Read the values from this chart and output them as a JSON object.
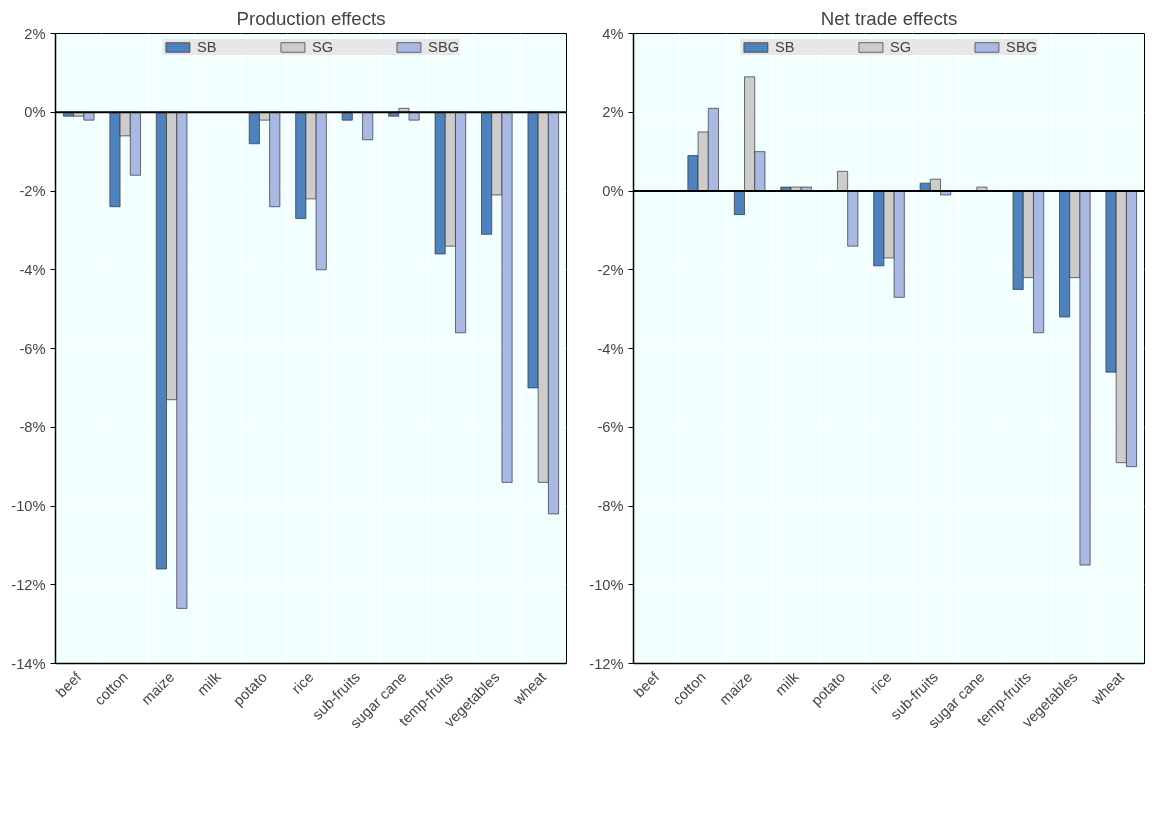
{
  "chart_data": [
    {
      "type": "bar",
      "title": "Production effects",
      "categories": [
        "beef",
        "cotton",
        "maize",
        "milk",
        "potato",
        "rice",
        "sub-fruits",
        "sugar cane",
        "temp-fruits",
        "vegetables",
        "wheat"
      ],
      "series": [
        {
          "name": "SB",
          "color": "#4f81bd",
          "values": [
            -0.1,
            -2.4,
            -11.6,
            null,
            -0.8,
            -2.7,
            -0.2,
            -0.1,
            -3.6,
            -3.1,
            -7.0
          ]
        },
        {
          "name": "SG",
          "color": "#cccccc",
          "values": [
            -0.1,
            -0.6,
            -7.3,
            null,
            -0.2,
            -2.2,
            null,
            0.1,
            -3.4,
            -2.1,
            -9.4
          ]
        },
        {
          "name": "SBG",
          "color": "#a9b9e4",
          "values": [
            -0.2,
            -1.6,
            -12.6,
            null,
            -2.4,
            -4.0,
            -0.7,
            -0.2,
            -5.6,
            -9.4,
            -10.2
          ]
        }
      ],
      "ylim": [
        -14,
        2
      ],
      "yticks": [
        {
          "value": -14,
          "label": "-14%"
        },
        {
          "value": -12,
          "label": "-12%"
        },
        {
          "value": -10,
          "label": "-10%"
        },
        {
          "value": -8,
          "label": "-8%"
        },
        {
          "value": -6,
          "label": "-6%"
        },
        {
          "value": -4,
          "label": "-4%"
        },
        {
          "value": -2,
          "label": "-2%"
        },
        {
          "value": 0,
          "label": "0%"
        },
        {
          "value": 2,
          "label": "2%"
        }
      ],
      "grid": true,
      "legend": "top"
    },
    {
      "type": "bar",
      "title": "Net trade effects",
      "categories": [
        "beef",
        "cotton",
        "maize",
        "milk",
        "potato",
        "rice",
        "sub-fruits",
        "sugar cane",
        "temp-fruits",
        "vegetables",
        "wheat"
      ],
      "series": [
        {
          "name": "SB",
          "color": "#4f81bd",
          "values": [
            null,
            0.9,
            -0.6,
            0.1,
            null,
            -1.9,
            0.2,
            null,
            -2.5,
            -3.2,
            -4.6
          ]
        },
        {
          "name": "SG",
          "color": "#cccccc",
          "values": [
            null,
            1.5,
            2.9,
            0.1,
            0.5,
            -1.7,
            0.3,
            0.1,
            -2.2,
            -2.2,
            -6.9
          ]
        },
        {
          "name": "SBG",
          "color": "#a9b9e4",
          "values": [
            null,
            2.1,
            1.0,
            0.1,
            -1.4,
            -2.7,
            -0.1,
            null,
            -3.6,
            -9.5,
            -7.0
          ]
        }
      ],
      "ylim": [
        -12,
        4
      ],
      "yticks": [
        {
          "value": -12,
          "label": "-12%"
        },
        {
          "value": -10,
          "label": "-10%"
        },
        {
          "value": -8,
          "label": "-8%"
        },
        {
          "value": -6,
          "label": "-6%"
        },
        {
          "value": -4,
          "label": "-4%"
        },
        {
          "value": -2,
          "label": "-2%"
        },
        {
          "value": 0,
          "label": "0%"
        },
        {
          "value": 2,
          "label": "2%"
        },
        {
          "value": 4,
          "label": "4%"
        }
      ],
      "grid": true,
      "legend": "top"
    }
  ]
}
